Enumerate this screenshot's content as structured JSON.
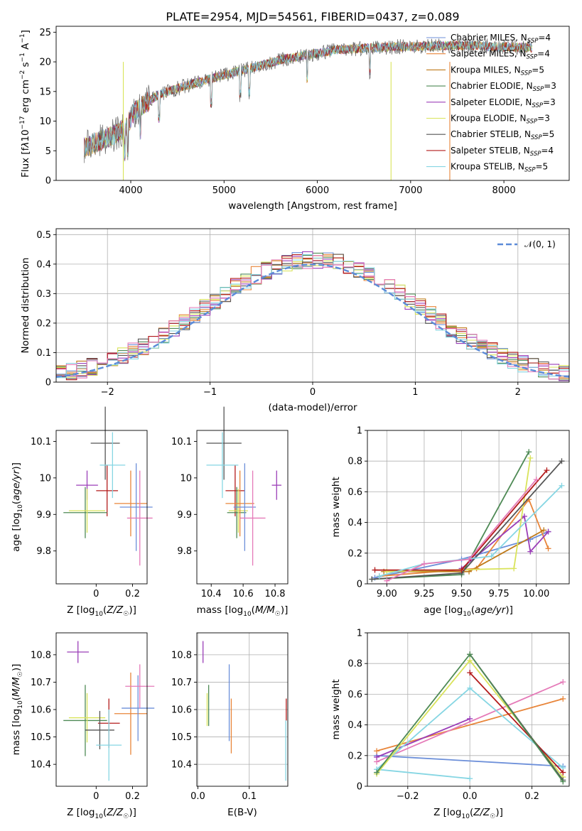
{
  "chart_data": [
    {
      "type": "line",
      "title": "PLATE=2954, MJD=54561, FIBERID=0437, z=0.089",
      "xlabel": "wavelength [Angstrom, rest frame]",
      "ylabel": "Flux [fλ10⁻¹⁷ erg cm⁻² s⁻¹ A⁻¹]",
      "xlim": [
        3200,
        8700
      ],
      "ylim": [
        0,
        26
      ],
      "xticks": [
        4000,
        5000,
        6000,
        7000,
        8000
      ],
      "yticks": [
        0,
        5,
        10,
        15,
        20,
        25
      ],
      "grid": false,
      "legend_position": "right",
      "series": [
        {
          "name": "Chabrier MILES, N_SSP=4",
          "legend": "Chabrier MILES, N",
          "sub": "SSP",
          "tail": "=4",
          "color": "#6c8fd9"
        },
        {
          "name": "Salpeter MILES, N_SSP=4",
          "legend": "Salpeter MILES, N",
          "sub": "SSP",
          "tail": "=4",
          "color": "#e8853a"
        },
        {
          "name": "Kroupa MILES, N_SSP=5",
          "legend": "Kroupa MILES, N",
          "sub": "SSP",
          "tail": "=5",
          "color": "#bf7a1a"
        },
        {
          "name": "Chabrier ELODIE, N_SSP=3",
          "legend": "Chabrier ELODIE, N",
          "sub": "SSP",
          "tail": "=3",
          "color": "#4e8a55"
        },
        {
          "name": "Salpeter ELODIE, N_SSP=3",
          "legend": "Salpeter ELODIE, N",
          "sub": "SSP",
          "tail": "=3",
          "color": "#9b3fb8"
        },
        {
          "name": "Kroupa ELODIE, N_SSP=3",
          "legend": "Kroupa ELODIE, N",
          "sub": "SSP",
          "tail": "=3",
          "color": "#d9e35a"
        },
        {
          "name": "Chabrier STELIB, N_SSP=5",
          "legend": "Chabrier STELIB, N",
          "sub": "SSP",
          "tail": "=5",
          "color": "#555555"
        },
        {
          "name": "Salpeter STELIB, N_SSP=4",
          "legend": "Salpeter STELIB, N",
          "sub": "SSP",
          "tail": "=4",
          "color": "#b31b1b"
        },
        {
          "name": "Kroupa STELIB, N_SSP=5",
          "legend": "Kroupa STELIB, N",
          "sub": "SSP",
          "tail": "=5",
          "color": "#86d6e3"
        }
      ],
      "spectrum_trend": {
        "x": [
          3500,
          3800,
          3950,
          4050,
          4300,
          4600,
          5000,
          5300,
          5600,
          5900,
          6200,
          6500,
          6800,
          7100,
          7400,
          7700,
          8000,
          8300
        ],
        "y": [
          5.5,
          7.5,
          9.0,
          11.8,
          14.5,
          16.0,
          17.8,
          19.0,
          20.3,
          21.2,
          22.0,
          22.3,
          22.5,
          22.6,
          22.8,
          22.7,
          22.5,
          22.4
        ]
      }
    },
    {
      "type": "bar",
      "xlabel": "(data-model)/error",
      "ylabel": "Normed distribution",
      "xlim": [
        -2.5,
        2.5
      ],
      "ylim": [
        0,
        0.52
      ],
      "xticks": [
        -2,
        -1,
        0,
        1,
        2
      ],
      "xtick_labels": [
        "−2",
        "−1",
        "0",
        "1",
        "2"
      ],
      "yticks": [
        0.0,
        0.1,
        0.2,
        0.3,
        0.4,
        0.5
      ],
      "grid": true,
      "legend": {
        "label": "𝒩(0, 1)",
        "position": "top-right"
      },
      "gaussian": {
        "mean": 0,
        "sigma": 1,
        "color": "#5b8bd8"
      },
      "bin_width": 0.1,
      "bin_start": -2.5
    },
    {
      "type": "scatter",
      "xlabel": "Z [log10(Z/Z☉)]",
      "ylabel": "age  [log10(age/yr)]",
      "xlim": [
        -0.22,
        0.28
      ],
      "ylim": [
        9.71,
        10.13
      ],
      "xticks": [
        0.0,
        0.2
      ],
      "yticks": [
        9.8,
        9.9,
        10.0,
        10.1
      ],
      "grid": false,
      "points": [
        {
          "x": -0.05,
          "y": 9.98,
          "xerr": 0.06,
          "yerr": 0.04,
          "color": "#9b3fb8"
        },
        {
          "x": 0.06,
          "y": 9.965,
          "xerr": 0.06,
          "yerr": 0.07,
          "color": "#b31b1b"
        },
        {
          "x": -0.06,
          "y": 9.905,
          "xerr": 0.12,
          "yerr": 0.07,
          "color": "#4e8a55"
        },
        {
          "x": -0.05,
          "y": 9.91,
          "xerr": 0.1,
          "yerr": 0.06,
          "color": "#d9e35a"
        },
        {
          "x": 0.05,
          "y": 10.095,
          "xerr": 0.08,
          "yerr": 0.1,
          "color": "#555555"
        },
        {
          "x": 0.09,
          "y": 10.035,
          "xerr": 0.07,
          "yerr": 0.09,
          "color": "#86d6e3"
        },
        {
          "x": 0.19,
          "y": 9.93,
          "xerr": 0.09,
          "yerr": 0.09,
          "color": "#e8853a"
        },
        {
          "x": 0.22,
          "y": 9.92,
          "xerr": 0.09,
          "yerr": 0.12,
          "color": "#6c8fd9"
        },
        {
          "x": 0.24,
          "y": 9.89,
          "xerr": 0.07,
          "yerr": 0.13,
          "color": "#e57ab8"
        }
      ]
    },
    {
      "type": "scatter",
      "xlabel": "mass [log10(M/M☉)]",
      "xlim": [
        10.31,
        10.88
      ],
      "ylim": [
        9.71,
        10.13
      ],
      "xticks": [
        10.4,
        10.6,
        10.8
      ],
      "yticks": [
        9.8,
        9.9,
        10.0,
        10.1
      ],
      "grid": false,
      "points": [
        {
          "x": 10.81,
          "y": 9.98,
          "xerr": 0.03,
          "yerr": 0.04,
          "color": "#9b3fb8"
        },
        {
          "x": 10.55,
          "y": 9.965,
          "xerr": 0.06,
          "yerr": 0.07,
          "color": "#b31b1b"
        },
        {
          "x": 10.56,
          "y": 9.905,
          "xerr": 0.06,
          "yerr": 0.07,
          "color": "#4e8a55"
        },
        {
          "x": 10.57,
          "y": 9.91,
          "xerr": 0.06,
          "yerr": 0.06,
          "color": "#d9e35a"
        },
        {
          "x": 10.48,
          "y": 10.095,
          "xerr": 0.11,
          "yerr": 0.1,
          "color": "#555555"
        },
        {
          "x": 10.47,
          "y": 10.035,
          "xerr": 0.1,
          "yerr": 0.09,
          "color": "#86d6e3"
        },
        {
          "x": 10.58,
          "y": 9.93,
          "xerr": 0.09,
          "yerr": 0.09,
          "color": "#e8853a"
        },
        {
          "x": 10.61,
          "y": 9.92,
          "xerr": 0.07,
          "yerr": 0.12,
          "color": "#6c8fd9"
        },
        {
          "x": 10.66,
          "y": 9.89,
          "xerr": 0.08,
          "yerr": 0.13,
          "color": "#e57ab8"
        }
      ]
    },
    {
      "type": "line",
      "xlabel": "age  [log10(age/yr)]",
      "ylabel": "mass weight",
      "xlim": [
        8.87,
        10.22
      ],
      "ylim": [
        0.0,
        1.0
      ],
      "xticks": [
        9.0,
        9.25,
        9.5,
        9.75,
        10.0
      ],
      "xtick_labels": [
        "9.00",
        "9.25",
        "9.50",
        "9.75",
        "10.00"
      ],
      "yticks": [
        0.0,
        0.2,
        0.4,
        0.6,
        0.8,
        1.0
      ],
      "grid": true,
      "series": [
        {
          "color": "#6c8fd9",
          "x": [
            8.92,
            9.5,
            9.96,
            10.08
          ],
          "y": [
            0.04,
            0.16,
            0.29,
            0.34
          ]
        },
        {
          "color": "#e8853a",
          "x": [
            8.95,
            9.6,
            9.95,
            10.08
          ],
          "y": [
            0.05,
            0.1,
            0.55,
            0.23
          ]
        },
        {
          "color": "#bf7a1a",
          "x": [
            8.98,
            9.55,
            10.05
          ],
          "y": [
            0.08,
            0.08,
            0.35
          ]
        },
        {
          "color": "#4e8a55",
          "x": [
            8.9,
            9.5,
            9.95
          ],
          "y": [
            0.03,
            0.06,
            0.86
          ]
        },
        {
          "color": "#9b3fb8",
          "x": [
            9.5,
            9.92,
            9.96,
            10.08
          ],
          "y": [
            0.1,
            0.44,
            0.21,
            0.34
          ]
        },
        {
          "color": "#d9e35a",
          "x": [
            9.0,
            9.85,
            9.96
          ],
          "y": [
            0.08,
            0.1,
            0.82
          ]
        },
        {
          "color": "#555555",
          "x": [
            8.9,
            9.5,
            10.17
          ],
          "y": [
            0.03,
            0.07,
            0.8
          ]
        },
        {
          "color": "#b31b1b",
          "x": [
            8.92,
            9.5,
            10.07
          ],
          "y": [
            0.09,
            0.09,
            0.74
          ]
        },
        {
          "color": "#86d6e3",
          "x": [
            8.95,
            9.25,
            9.7,
            10.17
          ],
          "y": [
            0.05,
            0.13,
            0.18,
            0.64
          ]
        },
        {
          "color": "#e57ab8",
          "x": [
            9.0,
            9.25,
            9.55,
            10.0
          ],
          "y": [
            0.02,
            0.13,
            0.16,
            0.68
          ]
        }
      ]
    },
    {
      "type": "scatter",
      "xlabel": "Z [log10(Z/Z☉)]",
      "ylabel": "mass [log10(M/M☉)]",
      "xlim": [
        -0.22,
        0.28
      ],
      "ylim": [
        10.32,
        10.88
      ],
      "xticks": [
        0.0,
        0.2
      ],
      "yticks": [
        10.4,
        10.5,
        10.6,
        10.7,
        10.8
      ],
      "grid": false,
      "points": [
        {
          "x": -0.1,
          "y": 10.81,
          "xerr": 0.06,
          "yerr": 0.04,
          "color": "#9b3fb8"
        },
        {
          "x": 0.07,
          "y": 10.55,
          "xerr": 0.06,
          "yerr": 0.09,
          "color": "#b31b1b"
        },
        {
          "x": -0.06,
          "y": 10.56,
          "xerr": 0.12,
          "yerr": 0.13,
          "color": "#4e8a55"
        },
        {
          "x": -0.05,
          "y": 10.57,
          "xerr": 0.1,
          "yerr": 0.09,
          "color": "#d9e35a"
        },
        {
          "x": 0.02,
          "y": 10.525,
          "xerr": 0.08,
          "yerr": 0.07,
          "color": "#555555"
        },
        {
          "x": 0.07,
          "y": 10.47,
          "xerr": 0.07,
          "yerr": 0.13,
          "color": "#86d6e3"
        },
        {
          "x": 0.19,
          "y": 10.585,
          "xerr": 0.09,
          "yerr": 0.15,
          "color": "#e8853a"
        },
        {
          "x": 0.23,
          "y": 10.605,
          "xerr": 0.09,
          "yerr": 0.12,
          "color": "#6c8fd9"
        },
        {
          "x": 0.24,
          "y": 10.685,
          "xerr": 0.08,
          "yerr": 0.08,
          "color": "#e57ab8"
        }
      ]
    },
    {
      "type": "scatter",
      "xlabel": "E(B-V)",
      "xlim": [
        -0.002,
        0.175
      ],
      "ylim": [
        10.32,
        10.88
      ],
      "xticks": [
        0.0,
        0.1
      ],
      "xtick_labels": [
        "0.0",
        "0.1"
      ],
      "yticks": [
        10.4,
        10.5,
        10.6,
        10.7,
        10.8
      ],
      "grid": false,
      "points": [
        {
          "x": 0.01,
          "y": 10.81,
          "yerr": 0.04,
          "color": "#9b3fb8"
        },
        {
          "x": 0.018,
          "y": 10.6,
          "yerr": 0.06,
          "color": "#d9e35a"
        },
        {
          "x": 0.021,
          "y": 10.615,
          "yerr": 0.075,
          "color": "#4e8a55"
        },
        {
          "x": 0.061,
          "y": 10.625,
          "yerr": 0.14,
          "color": "#6c8fd9"
        },
        {
          "x": 0.065,
          "y": 10.54,
          "yerr": 0.1,
          "color": "#e8853a"
        },
        {
          "x": 0.171,
          "y": 10.45,
          "yerr": 0.11,
          "color": "#86d6e3"
        },
        {
          "x": 0.172,
          "y": 10.6,
          "yerr": 0.04,
          "color": "#b31b1b"
        }
      ]
    },
    {
      "type": "line",
      "xlabel": "Z [log10(Z/Z☉)]",
      "ylabel": "mass weight",
      "xlim": [
        -0.33,
        0.32
      ],
      "ylim": [
        0.0,
        1.0
      ],
      "xticks": [
        -0.2,
        0.0,
        0.2
      ],
      "xtick_labels": [
        "−0.2",
        "0.0",
        "0.2"
      ],
      "yticks": [
        0.0,
        0.2,
        0.4,
        0.6,
        0.8,
        1.0
      ],
      "grid": true,
      "series": [
        {
          "color": "#6c8fd9",
          "x": [
            -0.3,
            0.3
          ],
          "y": [
            0.2,
            0.13
          ]
        },
        {
          "color": "#e8853a",
          "x": [
            -0.3,
            0.3
          ],
          "y": [
            0.23,
            0.57
          ]
        },
        {
          "color": "#e57ab8",
          "x": [
            -0.3,
            0.3
          ],
          "y": [
            0.16,
            0.68
          ]
        },
        {
          "color": "#9b3fb8",
          "x": [
            -0.3,
            0.0
          ],
          "y": [
            0.19,
            0.44
          ]
        },
        {
          "color": "#86d6e3",
          "x": [
            -0.3,
            0.0,
            0.3
          ],
          "y": [
            0.11,
            0.64,
            0.12
          ]
        },
        {
          "color": "#86d6e3",
          "x": [
            -0.3,
            0.0
          ],
          "y": [
            0.11,
            0.05
          ]
        },
        {
          "color": "#d9e35a",
          "x": [
            -0.3,
            0.0,
            0.3
          ],
          "y": [
            0.08,
            0.82,
            0.06
          ]
        },
        {
          "color": "#b31b1b",
          "x": [
            0.0,
            0.3
          ],
          "y": [
            0.74,
            0.09
          ]
        },
        {
          "color": "#555555",
          "x": [
            0.0,
            0.3
          ],
          "y": [
            0.86,
            0.04
          ]
        },
        {
          "color": "#4e8a55",
          "x": [
            -0.3,
            0.0,
            0.3
          ],
          "y": [
            0.09,
            0.86,
            0.03
          ]
        }
      ]
    }
  ]
}
